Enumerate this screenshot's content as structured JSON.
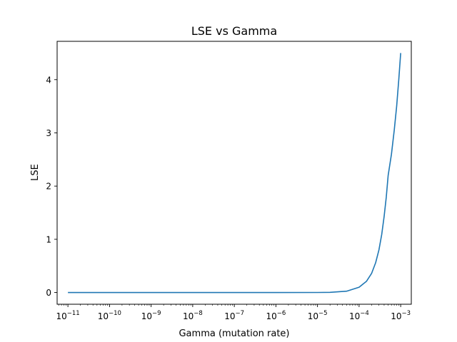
{
  "chart_data": {
    "type": "line",
    "title": "LSE vs Gamma",
    "xlabel": "Gamma (mutation rate)",
    "ylabel": "LSE",
    "xscale": "log",
    "xlim": [
      5.5e-12,
      0.0018
    ],
    "ylim": [
      -0.22,
      4.72
    ],
    "grid": false,
    "legend": "none",
    "x_ticks": [
      {
        "base": "10",
        "exp": "−11",
        "value": 1e-11
      },
      {
        "base": "10",
        "exp": "−10",
        "value": 1e-10
      },
      {
        "base": "10",
        "exp": "−9",
        "value": 1e-09
      },
      {
        "base": "10",
        "exp": "−8",
        "value": 1e-08
      },
      {
        "base": "10",
        "exp": "−7",
        "value": 1e-07
      },
      {
        "base": "10",
        "exp": "−6",
        "value": 1e-06
      },
      {
        "base": "10",
        "exp": "−5",
        "value": 1e-05
      },
      {
        "base": "10",
        "exp": "−4",
        "value": 0.0001
      },
      {
        "base": "10",
        "exp": "−3",
        "value": 0.001
      }
    ],
    "y_ticks": [
      {
        "label": "0",
        "value": 0
      },
      {
        "label": "1",
        "value": 1
      },
      {
        "label": "2",
        "value": 2
      },
      {
        "label": "3",
        "value": 3
      },
      {
        "label": "4",
        "value": 4
      }
    ],
    "series": [
      {
        "color": "#1f77b4",
        "x": [
          1e-11,
          1e-10,
          1e-09,
          1e-08,
          1e-07,
          1e-06,
          1e-05,
          2e-05,
          5e-05,
          0.0001,
          0.00015,
          0.0002,
          0.00025,
          0.0003,
          0.00035,
          0.0004,
          0.00045,
          0.0005,
          0.0006,
          0.0007,
          0.0008,
          0.0009,
          0.001
        ],
        "y": [
          0,
          0,
          0,
          0,
          0,
          0,
          0.001,
          0.004,
          0.025,
          0.1,
          0.21,
          0.36,
          0.56,
          0.8,
          1.09,
          1.43,
          1.79,
          2.2,
          2.6,
          3.05,
          3.5,
          4.0,
          4.5
        ]
      }
    ]
  }
}
